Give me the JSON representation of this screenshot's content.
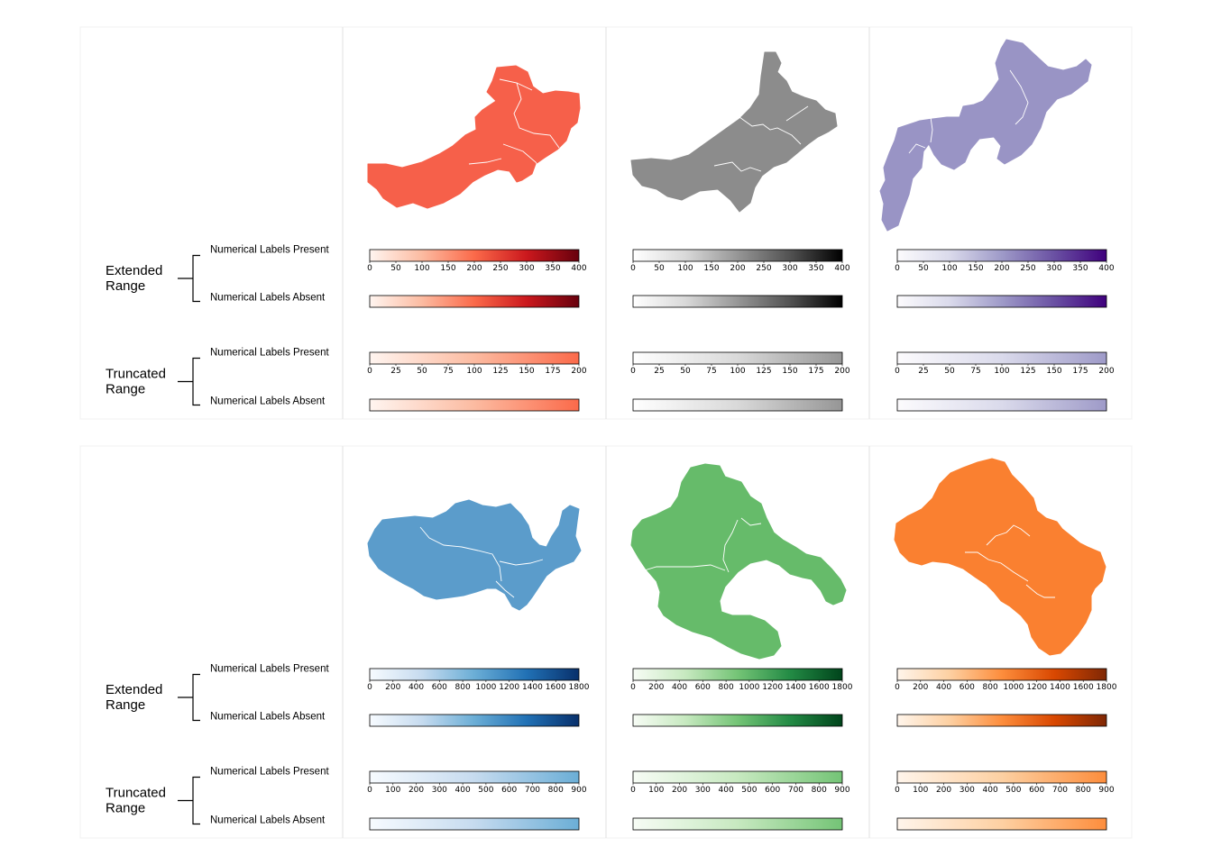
{
  "rows": [
    {
      "groups": [
        {
          "label_line1": "Extended",
          "label_line2": "Range",
          "present_label": "Numerical Labels Present",
          "absent_label": "Numerical Labels Absent"
        },
        {
          "label_line1": "Truncated",
          "label_line2": "Range",
          "present_label": "Numerical Labels Present",
          "absent_label": "Numerical Labels Absent"
        }
      ],
      "extended_ticks": [
        "0",
        "50",
        "100",
        "150",
        "200",
        "250",
        "300",
        "350",
        "400"
      ],
      "truncated_ticks": [
        "0",
        "25",
        "50",
        "75",
        "100",
        "125",
        "150",
        "175",
        "200"
      ],
      "maps": [
        {
          "name": "red-map",
          "colormap": "Reds",
          "fill": "#f6604a",
          "stops_full": [
            "#fff5f0",
            "#fcbba1",
            "#fb6a4a",
            "#cb181d",
            "#67000d"
          ],
          "stops_half": [
            "#fff5f0",
            "#fcbba1",
            "#fb6a4a"
          ]
        },
        {
          "name": "grey-map",
          "colormap": "Greys",
          "fill": "#8c8c8c",
          "stops_full": [
            "#ffffff",
            "#d9d9d9",
            "#969696",
            "#525252",
            "#000000"
          ],
          "stops_half": [
            "#ffffff",
            "#d9d9d9",
            "#969696"
          ]
        },
        {
          "name": "purple-map",
          "colormap": "Purples",
          "fill": "#9994c5",
          "stops_full": [
            "#fcfbfd",
            "#dadaeb",
            "#9e9ac8",
            "#6a51a3",
            "#3f007d"
          ],
          "stops_half": [
            "#fcfbfd",
            "#dadaeb",
            "#9e9ac8"
          ]
        }
      ]
    },
    {
      "groups": [
        {
          "label_line1": "Extended",
          "label_line2": "Range",
          "present_label": "Numerical Labels Present",
          "absent_label": "Numerical Labels Absent"
        },
        {
          "label_line1": "Truncated",
          "label_line2": "Range",
          "present_label": "Numerical Labels Present",
          "absent_label": "Numerical Labels Absent"
        }
      ],
      "extended_ticks": [
        "0",
        "200",
        "400",
        "600",
        "800",
        "1000",
        "1200",
        "1400",
        "1600",
        "1800"
      ],
      "truncated_ticks": [
        "0",
        "100",
        "200",
        "300",
        "400",
        "500",
        "600",
        "700",
        "800",
        "900"
      ],
      "maps": [
        {
          "name": "blue-map",
          "colormap": "Blues",
          "fill": "#5b9ccb",
          "stops_full": [
            "#f7fbff",
            "#c6dbef",
            "#6baed6",
            "#2171b5",
            "#08306b"
          ],
          "stops_half": [
            "#f7fbff",
            "#c6dbef",
            "#6baed6"
          ]
        },
        {
          "name": "green-map",
          "colormap": "Greens",
          "fill": "#66bb6a",
          "stops_full": [
            "#f7fcf5",
            "#c7e9c0",
            "#74c476",
            "#238b45",
            "#00441b"
          ],
          "stops_half": [
            "#f7fcf5",
            "#c7e9c0",
            "#74c476"
          ]
        },
        {
          "name": "orange-map",
          "colormap": "Oranges",
          "fill": "#fa8030",
          "stops_full": [
            "#fff5eb",
            "#fdd0a2",
            "#fd8d3c",
            "#d94801",
            "#7f2704"
          ],
          "stops_half": [
            "#fff5eb",
            "#fdd0a2",
            "#fd8d3c"
          ]
        }
      ]
    }
  ]
}
